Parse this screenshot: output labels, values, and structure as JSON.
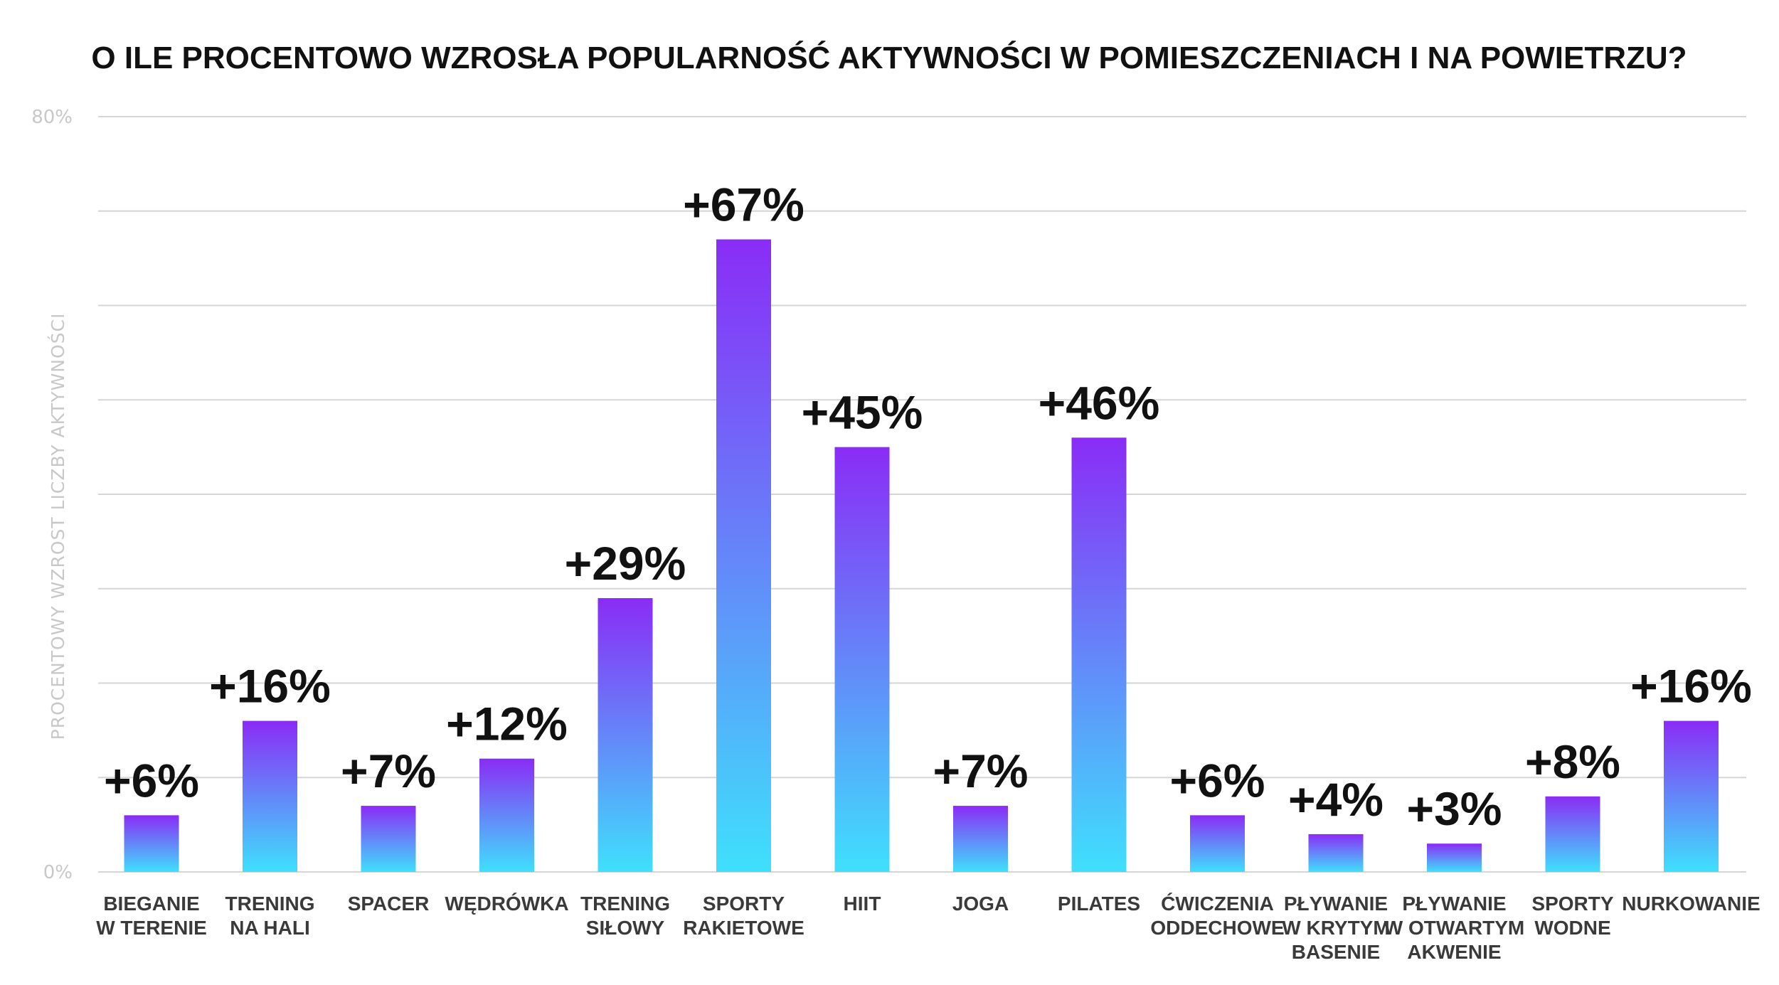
{
  "chart_data": {
    "type": "bar",
    "title": "O ILE PROCENTOWO WZROSŁA POPULARNOŚĆ AKTYWNOŚCI W POMIESZCZENIACH I NA POWIETRZU?",
    "ylabel": "PROCENTOWY WZROST LICZBY AKTYWNOŚCI",
    "xlabel": "",
    "ylim": [
      0,
      80
    ],
    "y_ticks": [
      {
        "value": 0,
        "label": "0%"
      },
      {
        "value": 80,
        "label": "80%"
      }
    ],
    "gridlines": [
      0,
      10,
      20,
      30,
      40,
      50,
      60,
      70,
      80
    ],
    "grid": true,
    "categories": [
      [
        "BIEGANIE",
        "W TERENIE"
      ],
      [
        "TRENING",
        "NA HALI"
      ],
      [
        "SPACER"
      ],
      [
        "WĘDRÓWKA"
      ],
      [
        "TRENING",
        "SIŁOWY"
      ],
      [
        "SPORTY",
        "RAKIETOWE"
      ],
      [
        "HIIT"
      ],
      [
        "JOGA"
      ],
      [
        "PILATES"
      ],
      [
        "ĆWICZENIA",
        "ODDECHOWE"
      ],
      [
        "PŁYWANIE",
        "W KRYTYM",
        "BASENIE"
      ],
      [
        "PŁYWANIE",
        "W OTWARTYM",
        "AKWENIE"
      ],
      [
        "SPORTY",
        "WODNE"
      ],
      [
        "NURKOWANIE"
      ]
    ],
    "values": [
      6,
      16,
      7,
      12,
      29,
      67,
      45,
      7,
      46,
      6,
      4,
      3,
      8,
      16
    ],
    "data_labels": [
      "+6%",
      "+16%",
      "+7%",
      "+12%",
      "+29%",
      "+67%",
      "+45%",
      "+7%",
      "+46%",
      "+6%",
      "+4%",
      "+3%",
      "+8%",
      "+16%"
    ],
    "colors": {
      "bar_top": "#8a2cf6",
      "bar_bottom": "#3fe0fc",
      "grid": "#d6d6d6",
      "tick": "#c8c8c8",
      "title": "#111111",
      "value_label": "#111111",
      "category_label": "#3a3a3a"
    }
  }
}
